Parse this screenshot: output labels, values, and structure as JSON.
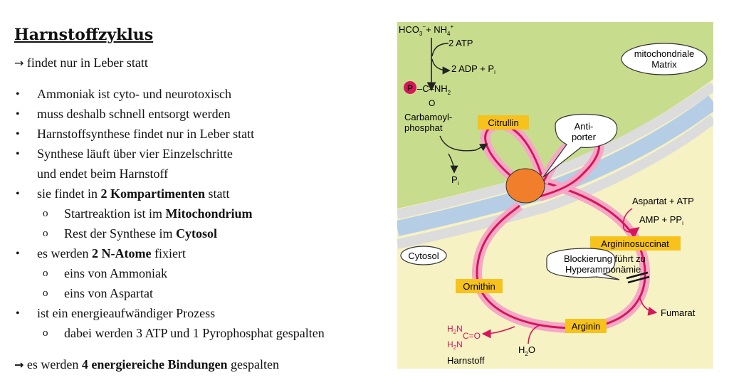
{
  "notes": {
    "title": "Harnstoffzyklus",
    "arrow_symbol": "→",
    "intro": "findet nur in Leber statt",
    "bullets": [
      "Ammoniak ist cyto- und neurotoxisch",
      "muss deshalb schnell entsorgt werden",
      "Harnstoffsynthese findet nur in Leber statt",
      "Synthese läuft über vier Einzelschritte",
      "und endet beim Harnstoff"
    ],
    "b5_pre": "sie findet in ",
    "b5_bold": "2 Kompartimenten",
    "b5_post": " statt",
    "s1_pre": "Startreaktion ist im ",
    "s1_bold": "Mitochondrium",
    "s2_pre": "Rest der Synthese im ",
    "s2_bold": "Cytosol",
    "b6_pre": "es werden ",
    "b6_bold": "2 N-Atome",
    "b6_post": " fixiert",
    "s3": "eins von Ammoniak",
    "s4": "eins von Aspartat",
    "b7": "ist ein energieaufwändiger Prozess",
    "s5": "dabei werden 3 ATP und 1 Pyrophosphat gespalten",
    "final_pre": "es werden ",
    "final_bold": "4 energiereiche Bindungen",
    "final_post": " gespalten",
    "bullet_char": "•",
    "sub_char": "o"
  },
  "diagram": {
    "hco3": "HCO",
    "nh4": "+ NH",
    "atp2": "2 ATP",
    "adp2": "2 ADP + P",
    "mito_label_1": "mitochondriale",
    "mito_label_2": "Matrix",
    "p_symbol": "P",
    "carb_chem": "–C–NH",
    "carb_o": "O",
    "carb_name_1": "Carbamoyl-",
    "carb_name_2": "phosphat",
    "pi": "P",
    "citrullin": "Citrullin",
    "antiporter_1": "Anti-",
    "antiporter_2": "porter",
    "aspartat_atp": "Aspartat + ATP",
    "amp_ppi": "AMP + PP",
    "argininosuccinat": "Argininosuccinat",
    "cytosol": "Cytosol",
    "block_1": "Blockierung führt zu",
    "block_2": "Hyperammonämie",
    "ornithin": "Ornithin",
    "fumarat": "Fumarat",
    "arginin": "Arginin",
    "h2o": "H",
    "harnstoff": "Harnstoff",
    "urea_top": "H",
    "urea_mid": "C=O",
    "urea_bot": "H",
    "colors": {
      "matrix": "#c8dc8e",
      "cytosol": "#f6f2c4",
      "membrane_blue": "#b6cde6",
      "membrane_grey": "#dcdcdc",
      "cycle_red": "#d8155a",
      "cycle_glow": "#f4a8c6",
      "label_box": "#f7c21c",
      "antiporter": "#f07e2a"
    }
  }
}
